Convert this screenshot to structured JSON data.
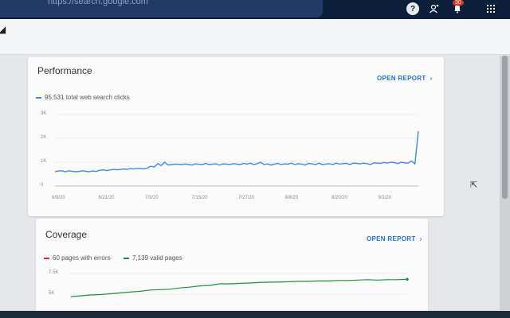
{
  "topbar": {
    "search_text": "https://search.google.com",
    "help_icon": "help-icon",
    "accounts_icon": "account-switcher-icon",
    "notifications_badge": "30",
    "apps_icon": "apps-grid-icon"
  },
  "performance": {
    "title": "Performance",
    "open_report": "OPEN REPORT",
    "legend": "95,531 total web search clicks"
  },
  "coverage": {
    "title": "Coverage",
    "open_report": "OPEN REPORT",
    "legend_errors": "60 pages with errors",
    "legend_valid": "7,139 valid pages"
  },
  "chart_data": [
    {
      "type": "line",
      "title": "",
      "xlabel": "",
      "ylabel": "",
      "ylim": [
        0,
        3000
      ],
      "yticks": [
        "3K",
        "2K",
        "1K",
        "0"
      ],
      "xticks": [
        "6/9/20",
        "6/21/20",
        "7/3/20",
        "7/15/20",
        "7/27/20",
        "8/8/20",
        "8/20/20",
        "9/1/20"
      ],
      "grid": true,
      "color": "#4285f4",
      "series": [
        {
          "name": "95,531 total web search clicks",
          "values": [
            600,
            630,
            640,
            600,
            640,
            620,
            600,
            610,
            640,
            620,
            600,
            630,
            610,
            660,
            680,
            650,
            670,
            700,
            680,
            690,
            720,
            700,
            730,
            720,
            740,
            740,
            720,
            760,
            830,
            800,
            940,
            860,
            1000,
            880,
            900,
            920,
            910,
            900,
            930,
            900,
            880,
            930,
            910,
            900,
            950,
            900,
            920,
            930,
            880,
            930,
            920,
            900,
            940,
            920,
            900,
            950,
            920,
            960,
            900,
            940,
            1000,
            900,
            930,
            880,
            920,
            950,
            900,
            930,
            920,
            960,
            900,
            940,
            920,
            880,
            950,
            930,
            900,
            960,
            900,
            920,
            940,
            900,
            960,
            920,
            940,
            950,
            900,
            960,
            950,
            930,
            960,
            940,
            900,
            970,
            960,
            950,
            990,
            960,
            1000,
            980,
            940,
            1000,
            970,
            960,
            1050,
            930,
            2300
          ]
        }
      ]
    },
    {
      "type": "line",
      "title": "",
      "yticks": [
        "7.5K",
        "5K"
      ],
      "grid": true,
      "series": [
        {
          "name": "7,139 valid pages",
          "color": "#1e8e3e",
          "values": [
            4700,
            4800,
            4900,
            4950,
            5050,
            5150,
            5250,
            5350,
            5500,
            5550,
            5600,
            5750,
            5850,
            6000,
            6050,
            6250,
            6250,
            6300,
            6350,
            6400,
            6450,
            6450,
            6500,
            6550,
            6550,
            6600,
            6600,
            6650,
            6650,
            6700,
            6750,
            6700,
            6750,
            6750,
            6800
          ]
        }
      ]
    }
  ]
}
